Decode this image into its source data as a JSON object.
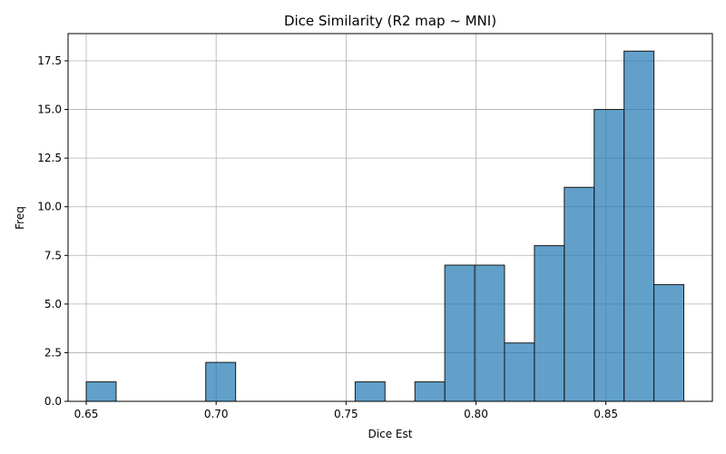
{
  "chart_data": {
    "type": "bar",
    "title": "Dice Similarity (R2 map ~ MNI)",
    "xlabel": "Dice Est",
    "ylabel": "Freq",
    "xlim": [
      0.643,
      0.891
    ],
    "ylim": [
      0,
      18.9
    ],
    "bin_edges": [
      0.65,
      0.6615,
      0.673,
      0.6845,
      0.696,
      0.7075,
      0.719,
      0.7305,
      0.742,
      0.7535,
      0.765,
      0.7765,
      0.788,
      0.7995,
      0.811,
      0.8225,
      0.834,
      0.8455,
      0.857,
      0.8685,
      0.88
    ],
    "values": [
      1,
      0,
      0,
      0,
      2,
      0,
      0,
      0,
      0,
      1,
      0,
      1,
      7,
      7,
      3,
      8,
      11,
      15,
      18,
      6
    ],
    "xticks": [
      0.65,
      0.7,
      0.75,
      0.8,
      0.85
    ],
    "xtick_labels": [
      "0.65",
      "0.70",
      "0.75",
      "0.80",
      "0.85"
    ],
    "yticks": [
      0.0,
      2.5,
      5.0,
      7.5,
      10.0,
      12.5,
      15.0,
      17.5
    ],
    "ytick_labels": [
      "0.0",
      "2.5",
      "5.0",
      "7.5",
      "10.0",
      "12.5",
      "15.0",
      "17.5"
    ],
    "grid": true,
    "bar_color": "#1f77b4",
    "edge_color": "#1a1a1a"
  }
}
